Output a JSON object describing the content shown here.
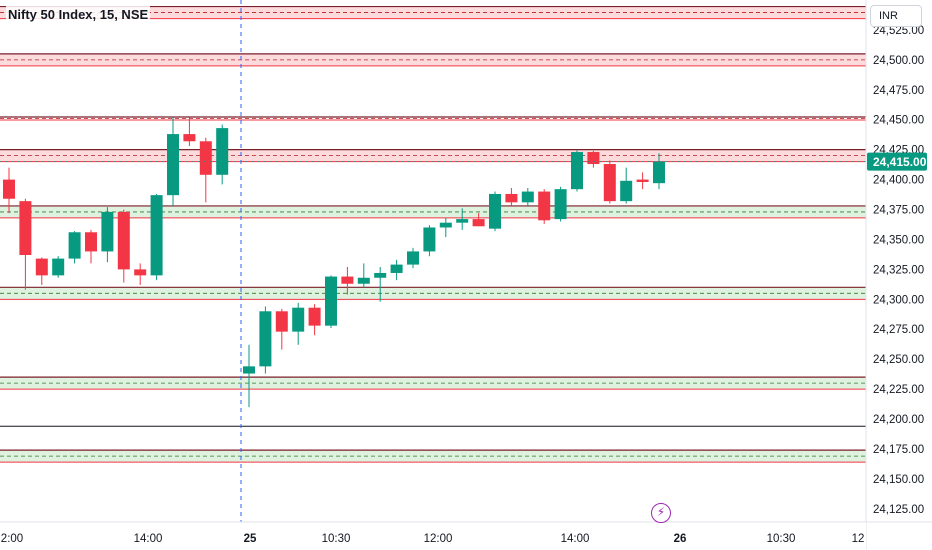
{
  "header": {
    "title": "Nifty 50 Index, 15, NSE"
  },
  "currency_button": {
    "label": "INR"
  },
  "colors": {
    "up": "#089981",
    "down": "#f23645",
    "session_divider": "#2962ff",
    "badge": "#9c27b0"
  },
  "icons": {
    "flash_badge": "lightning-bolt-icon"
  },
  "chart_data": {
    "type": "candlestick",
    "ylim": [
      24114,
      24550
    ],
    "y_ticks": [
      "24,525.00",
      "24,500.00",
      "24,475.00",
      "24,450.00",
      "24,425.00",
      "24,400.00",
      "24,375.00",
      "24,350.00",
      "24,325.00",
      "24,300.00",
      "24,275.00",
      "24,250.00",
      "24,225.00",
      "24,200.00",
      "24,175.00",
      "24,150.00",
      "24,125.00"
    ],
    "y_tick_values": [
      24525,
      24500,
      24475,
      24450,
      24425,
      24400,
      24375,
      24350,
      24325,
      24300,
      24275,
      24250,
      24225,
      24200,
      24175,
      24150,
      24125
    ],
    "x_ticks": [
      "2:00",
      "14:00",
      "25",
      "10:30",
      "12:00",
      "14:00",
      "26",
      "10:30",
      "12"
    ],
    "last_price": {
      "label": "24,415.00",
      "value": 24415,
      "direction": "up"
    },
    "candles": [
      {
        "o": 24400,
        "h": 24410,
        "l": 24372,
        "c": 24384
      },
      {
        "o": 24382,
        "h": 24384,
        "l": 24308,
        "c": 24337
      },
      {
        "o": 24334,
        "h": 24335,
        "l": 24312,
        "c": 24320
      },
      {
        "o": 24320,
        "h": 24336,
        "l": 24318,
        "c": 24334
      },
      {
        "o": 24334,
        "h": 24357,
        "l": 24330,
        "c": 24356
      },
      {
        "o": 24356,
        "h": 24358,
        "l": 24330,
        "c": 24340
      },
      {
        "o": 24340,
        "h": 24377,
        "l": 24331,
        "c": 24373
      },
      {
        "o": 24373,
        "h": 24375,
        "l": 24314,
        "c": 24325
      },
      {
        "o": 24325,
        "h": 24330,
        "l": 24312,
        "c": 24320
      },
      {
        "o": 24320,
        "h": 24388,
        "l": 24316,
        "c": 24387
      },
      {
        "o": 24387,
        "h": 24452,
        "l": 24378,
        "c": 24438
      },
      {
        "o": 24438,
        "h": 24452,
        "l": 24428,
        "c": 24432
      },
      {
        "o": 24432,
        "h": 24435,
        "l": 24381,
        "c": 24404
      },
      {
        "o": 24404,
        "h": 24446,
        "l": 24396,
        "c": 24443
      },
      {
        "o": 24238,
        "h": 24262,
        "l": 24210,
        "c": 24244
      },
      {
        "o": 24244,
        "h": 24294,
        "l": 24238,
        "c": 24290
      },
      {
        "o": 24290,
        "h": 24292,
        "l": 24258,
        "c": 24273
      },
      {
        "o": 24273,
        "h": 24297,
        "l": 24262,
        "c": 24293
      },
      {
        "o": 24293,
        "h": 24296,
        "l": 24270,
        "c": 24278
      },
      {
        "o": 24278,
        "h": 24320,
        "l": 24276,
        "c": 24319
      },
      {
        "o": 24319,
        "h": 24327,
        "l": 24304,
        "c": 24313
      },
      {
        "o": 24313,
        "h": 24330,
        "l": 24310,
        "c": 24318
      },
      {
        "o": 24318,
        "h": 24327,
        "l": 24298,
        "c": 24322
      },
      {
        "o": 24322,
        "h": 24333,
        "l": 24316,
        "c": 24329
      },
      {
        "o": 24329,
        "h": 24343,
        "l": 24326,
        "c": 24340
      },
      {
        "o": 24340,
        "h": 24362,
        "l": 24336,
        "c": 24360
      },
      {
        "o": 24360,
        "h": 24368,
        "l": 24352,
        "c": 24364
      },
      {
        "o": 24364,
        "h": 24376,
        "l": 24358,
        "c": 24367
      },
      {
        "o": 24367,
        "h": 24372,
        "l": 24362,
        "c": 24361
      },
      {
        "o": 24359,
        "h": 24390,
        "l": 24357,
        "c": 24388
      },
      {
        "o": 24388,
        "h": 24393,
        "l": 24378,
        "c": 24381
      },
      {
        "o": 24381,
        "h": 24393,
        "l": 24378,
        "c": 24390
      },
      {
        "o": 24390,
        "h": 24392,
        "l": 24363,
        "c": 24366
      },
      {
        "o": 24367,
        "h": 24394,
        "l": 24365,
        "c": 24392
      },
      {
        "o": 24392,
        "h": 24425,
        "l": 24390,
        "c": 24423
      },
      {
        "o": 24423,
        "h": 24424,
        "l": 24410,
        "c": 24413
      },
      {
        "o": 24413,
        "h": 24416,
        "l": 24380,
        "c": 24382
      },
      {
        "o": 24382,
        "h": 24410,
        "l": 24380,
        "c": 24399
      },
      {
        "o": 24400,
        "h": 24406,
        "l": 24392,
        "c": 24398
      },
      {
        "o": 24397,
        "h": 24422,
        "l": 24392,
        "c": 24415
      }
    ],
    "levels": [
      {
        "price": 24539.5,
        "kind": "resist",
        "band": true
      },
      {
        "price": 24500,
        "kind": "resist",
        "band": true
      },
      {
        "price": 24451,
        "kind": "resist",
        "band": false
      },
      {
        "price": 24420,
        "kind": "resist",
        "band": true
      },
      {
        "price": 24373,
        "kind": "support",
        "band": true
      },
      {
        "price": 24305,
        "kind": "support",
        "band": true
      },
      {
        "price": 24230,
        "kind": "support",
        "band": true
      },
      {
        "price": 24194,
        "kind": "neutral",
        "band": false
      },
      {
        "price": 24169,
        "kind": "support",
        "band": true
      }
    ]
  }
}
